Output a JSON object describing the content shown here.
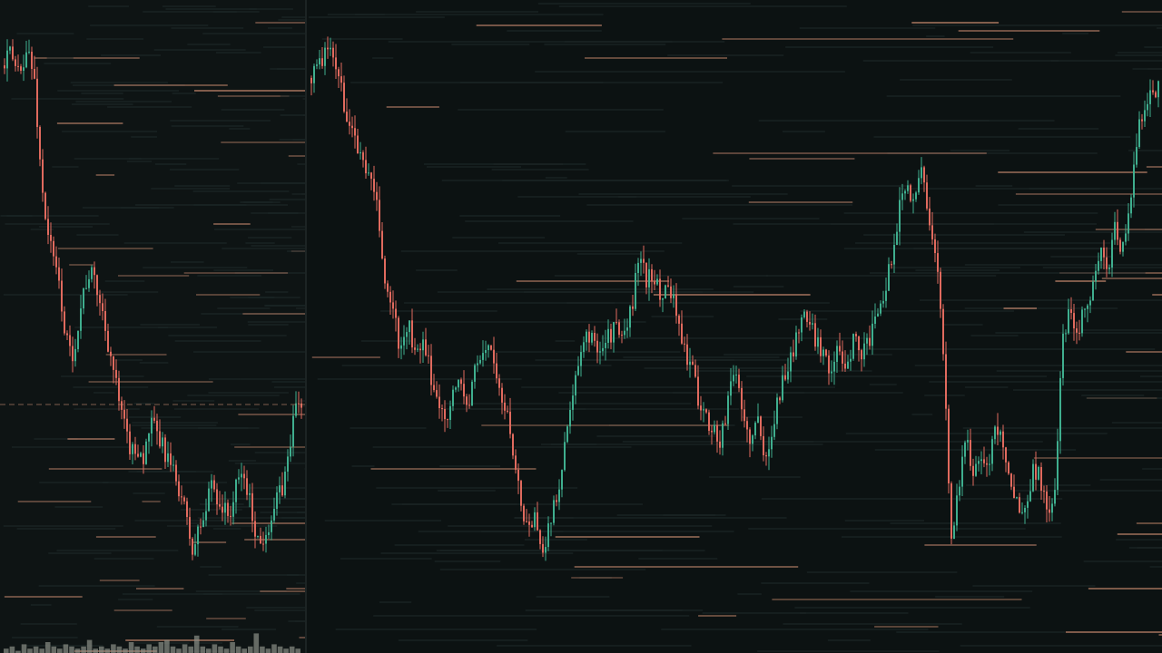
{
  "colors": {
    "background": "#0b0f0f",
    "up_candle": "#3fae8e",
    "down_candle": "#e06a5e",
    "orderbook_line": "#c98b70",
    "grid_dim": "#1f2a2a",
    "volume_bar": "#8a8f86"
  },
  "chart_data": [
    {
      "type": "candlestick",
      "panel": "left",
      "title": "",
      "xlabel": "",
      "ylabel": "",
      "grid": false,
      "ylim": [
        0,
        100
      ],
      "close_path": [
        [
          0,
          91
        ],
        [
          2,
          93
        ],
        [
          4,
          90
        ],
        [
          6,
          92
        ],
        [
          8,
          93
        ],
        [
          10,
          88
        ],
        [
          12,
          73
        ],
        [
          14,
          65
        ],
        [
          16,
          60
        ],
        [
          18,
          56
        ],
        [
          20,
          48
        ],
        [
          22,
          44
        ],
        [
          24,
          49
        ],
        [
          26,
          55
        ],
        [
          28,
          58
        ],
        [
          30,
          56
        ],
        [
          32,
          52
        ],
        [
          34,
          47
        ],
        [
          36,
          42
        ],
        [
          38,
          36
        ],
        [
          40,
          32
        ],
        [
          42,
          29
        ],
        [
          44,
          30
        ],
        [
          46,
          28
        ],
        [
          48,
          34
        ],
        [
          50,
          32
        ],
        [
          52,
          30
        ],
        [
          54,
          28
        ],
        [
          56,
          25
        ],
        [
          58,
          23
        ],
        [
          60,
          18
        ],
        [
          62,
          13
        ],
        [
          64,
          17
        ],
        [
          66,
          19
        ],
        [
          68,
          25
        ],
        [
          70,
          22
        ],
        [
          72,
          20
        ],
        [
          74,
          19
        ],
        [
          76,
          23
        ],
        [
          78,
          26
        ],
        [
          80,
          23
        ],
        [
          82,
          18
        ],
        [
          84,
          14
        ],
        [
          86,
          17
        ],
        [
          88,
          19
        ],
        [
          90,
          22
        ],
        [
          92,
          24
        ],
        [
          94,
          31
        ],
        [
          96,
          37
        ],
        [
          98,
          37
        ]
      ],
      "volume": [
        2,
        3,
        1,
        4,
        2,
        3,
        2,
        5,
        3,
        2,
        4,
        3,
        2,
        3,
        6,
        2,
        3,
        2,
        4,
        3,
        2,
        5,
        3,
        2,
        4,
        3,
        5,
        6,
        3,
        2,
        4,
        3,
        8,
        3,
        2,
        4,
        3,
        2,
        5,
        3,
        2,
        3,
        9,
        3,
        2,
        4,
        3,
        2,
        3,
        2
      ]
    },
    {
      "type": "candlestick",
      "panel": "right",
      "title": "",
      "xlabel": "",
      "ylabel": "",
      "grid": false,
      "ylim": [
        0,
        100
      ],
      "close_path": [
        [
          0,
          89
        ],
        [
          1,
          91
        ],
        [
          2,
          93
        ],
        [
          3,
          92
        ],
        [
          4,
          87
        ],
        [
          5,
          82
        ],
        [
          6,
          78
        ],
        [
          7,
          76
        ],
        [
          8,
          72
        ],
        [
          9,
          67
        ],
        [
          10,
          55
        ],
        [
          11,
          52
        ],
        [
          12,
          45
        ],
        [
          13,
          50
        ],
        [
          14,
          44
        ],
        [
          15,
          46
        ],
        [
          16,
          42
        ],
        [
          17,
          37
        ],
        [
          18,
          35
        ],
        [
          19,
          38
        ],
        [
          20,
          41
        ],
        [
          21,
          36
        ],
        [
          22,
          42
        ],
        [
          23,
          45
        ],
        [
          24,
          47
        ],
        [
          25,
          40
        ],
        [
          26,
          36
        ],
        [
          27,
          31
        ],
        [
          28,
          22
        ],
        [
          29,
          17
        ],
        [
          30,
          19
        ],
        [
          31,
          14
        ],
        [
          32,
          17
        ],
        [
          33,
          22
        ],
        [
          34,
          30
        ],
        [
          35,
          37
        ],
        [
          36,
          43
        ],
        [
          37,
          48
        ],
        [
          38,
          47
        ],
        [
          39,
          46
        ],
        [
          40,
          48
        ],
        [
          41,
          49
        ],
        [
          42,
          47
        ],
        [
          43,
          52
        ],
        [
          44,
          60
        ],
        [
          45,
          57
        ],
        [
          46,
          58
        ],
        [
          47,
          53
        ],
        [
          48,
          57
        ],
        [
          49,
          52
        ],
        [
          50,
          46
        ],
        [
          51,
          43
        ],
        [
          52,
          38
        ],
        [
          53,
          35
        ],
        [
          54,
          33
        ],
        [
          55,
          30
        ],
        [
          56,
          38
        ],
        [
          57,
          43
        ],
        [
          58,
          35
        ],
        [
          59,
          31
        ],
        [
          60,
          34
        ],
        [
          61,
          27
        ],
        [
          62,
          34
        ],
        [
          63,
          39
        ],
        [
          64,
          43
        ],
        [
          65,
          46
        ],
        [
          66,
          52
        ],
        [
          67,
          49
        ],
        [
          68,
          47
        ],
        [
          69,
          45
        ],
        [
          70,
          42
        ],
        [
          71,
          46
        ],
        [
          72,
          43
        ],
        [
          73,
          48
        ],
        [
          74,
          45
        ],
        [
          75,
          47
        ],
        [
          76,
          50
        ],
        [
          77,
          54
        ],
        [
          78,
          60
        ],
        [
          79,
          68
        ],
        [
          80,
          72
        ],
        [
          81,
          70
        ],
        [
          82,
          74
        ],
        [
          83,
          68
        ],
        [
          84,
          60
        ],
        [
          85,
          45
        ],
        [
          86,
          15
        ],
        [
          87,
          24
        ],
        [
          88,
          31
        ],
        [
          89,
          26
        ],
        [
          90,
          29
        ],
        [
          91,
          27
        ],
        [
          92,
          33
        ],
        [
          93,
          31
        ],
        [
          94,
          24
        ],
        [
          95,
          21
        ],
        [
          96,
          19
        ],
        [
          97,
          27
        ],
        [
          98,
          25
        ],
        [
          99,
          20
        ],
        [
          100,
          22
        ],
        [
          101,
          48
        ],
        [
          102,
          52
        ],
        [
          103,
          49
        ],
        [
          104,
          52
        ],
        [
          105,
          56
        ],
        [
          106,
          61
        ],
        [
          107,
          58
        ],
        [
          108,
          65
        ],
        [
          109,
          62
        ],
        [
          110,
          67
        ],
        [
          111,
          80
        ],
        [
          112,
          84
        ],
        [
          113,
          88
        ],
        [
          114,
          87
        ]
      ]
    }
  ]
}
